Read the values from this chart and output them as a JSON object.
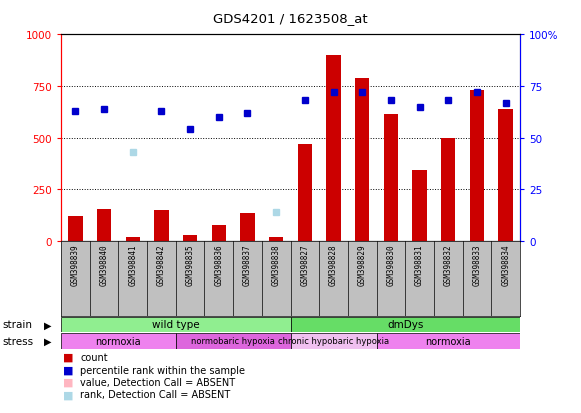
{
  "title": "GDS4201 / 1623508_at",
  "samples": [
    "GSM398839",
    "GSM398840",
    "GSM398841",
    "GSM398842",
    "GSM398835",
    "GSM398836",
    "GSM398837",
    "GSM398838",
    "GSM398827",
    "GSM398828",
    "GSM398829",
    "GSM398830",
    "GSM398831",
    "GSM398832",
    "GSM398833",
    "GSM398834"
  ],
  "count_values": [
    120,
    155,
    18,
    150,
    28,
    80,
    135,
    20,
    470,
    900,
    790,
    615,
    345,
    500,
    730,
    640
  ],
  "rank_values": [
    63,
    64,
    43,
    63,
    54,
    60,
    62,
    14,
    68,
    72,
    72,
    68,
    65,
    68,
    72,
    67
  ],
  "rank_absent": [
    false,
    false,
    true,
    false,
    false,
    false,
    false,
    true,
    false,
    false,
    false,
    false,
    false,
    false,
    false,
    false
  ],
  "count_absent": [
    false,
    false,
    false,
    false,
    false,
    false,
    false,
    false,
    false,
    false,
    false,
    false,
    false,
    false,
    false,
    false
  ],
  "ylim_left": [
    0,
    1000
  ],
  "ylim_right": [
    0,
    100
  ],
  "yticks_left": [
    0,
    250,
    500,
    750,
    1000
  ],
  "yticks_right": [
    0,
    25,
    50,
    75,
    100
  ],
  "bar_color": "#CC0000",
  "rank_color": "#0000CC",
  "absent_bar_color": "#FFB6C1",
  "absent_rank_color": "#ADD8E6",
  "bg_color": "#FFFFFF",
  "label_bg": "#C0C0C0",
  "strain_groups": [
    {
      "label": "wild type",
      "start": 0,
      "end": 8,
      "color": "#90EE90"
    },
    {
      "label": "dmDys",
      "start": 8,
      "end": 16,
      "color": "#66DD66"
    }
  ],
  "stress_groups": [
    {
      "label": "normoxia",
      "start": 0,
      "end": 4,
      "color": "#EE82EE"
    },
    {
      "label": "normobaric hypoxia",
      "start": 4,
      "end": 8,
      "color": "#DD66DD"
    },
    {
      "label": "chronic hypobaric hypoxia",
      "start": 8,
      "end": 11,
      "color": "#F0C0F0"
    },
    {
      "label": "normoxia",
      "start": 11,
      "end": 16,
      "color": "#EE82EE"
    }
  ],
  "legend_items": [
    {
      "color": "#CC0000",
      "label": "count"
    },
    {
      "color": "#0000CC",
      "label": "percentile rank within the sample"
    },
    {
      "color": "#FFB6C1",
      "label": "value, Detection Call = ABSENT"
    },
    {
      "color": "#ADD8E6",
      "label": "rank, Detection Call = ABSENT"
    }
  ]
}
